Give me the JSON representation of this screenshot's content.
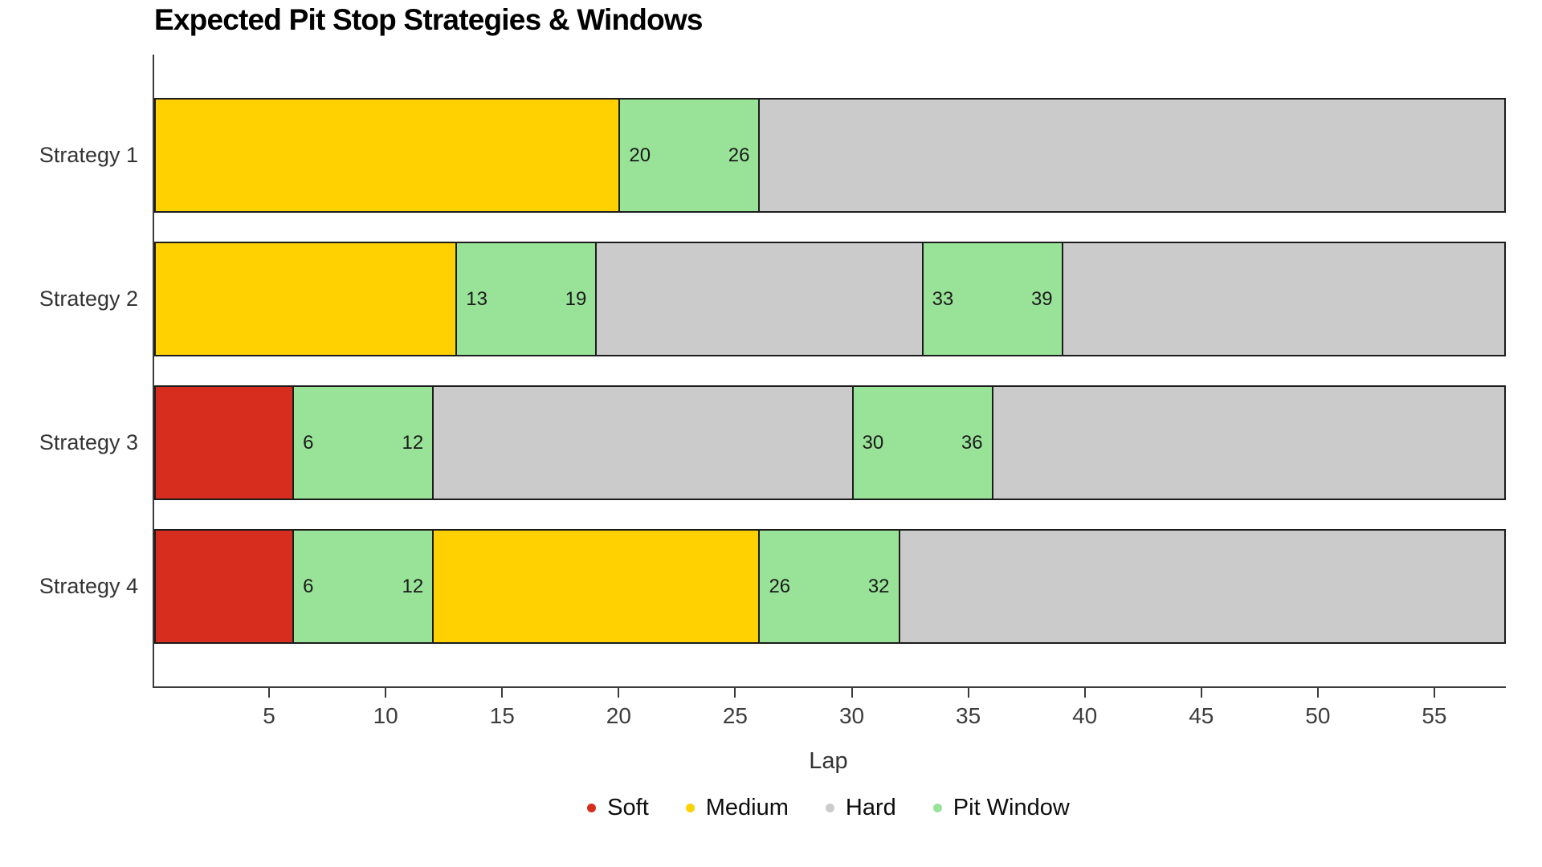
{
  "title": "Expected Pit Stop Strategies & Windows",
  "chart_data": {
    "type": "bar",
    "orientation": "horizontal-stacked",
    "title": "Expected Pit Stop Strategies & Windows",
    "xlabel": "Lap",
    "ylabel": "",
    "xlim": [
      0,
      58
    ],
    "xticks": [
      5,
      10,
      15,
      20,
      25,
      30,
      35,
      40,
      45,
      50,
      55
    ],
    "grid": false,
    "legend_position": "bottom",
    "legend": [
      {
        "name": "Soft",
        "color": "#d62d1f"
      },
      {
        "name": "Medium",
        "color": "#ffd100"
      },
      {
        "name": "Hard",
        "color": "#cbcbcb"
      },
      {
        "name": "Pit Window",
        "color": "#99e399"
      }
    ],
    "categories": [
      "Strategy 1",
      "Strategy 2",
      "Strategy 3",
      "Strategy 4"
    ],
    "rows": [
      {
        "label": "Strategy 1",
        "segments": [
          {
            "compound": "Medium",
            "start": 0,
            "end": 20
          },
          {
            "compound": "Pit Window",
            "start": 20,
            "end": 26,
            "start_label": "20",
            "end_label": "26"
          },
          {
            "compound": "Hard",
            "start": 26,
            "end": 58
          }
        ]
      },
      {
        "label": "Strategy 2",
        "segments": [
          {
            "compound": "Medium",
            "start": 0,
            "end": 13
          },
          {
            "compound": "Pit Window",
            "start": 13,
            "end": 19,
            "start_label": "13",
            "end_label": "19"
          },
          {
            "compound": "Hard",
            "start": 19,
            "end": 33
          },
          {
            "compound": "Pit Window",
            "start": 33,
            "end": 39,
            "start_label": "33",
            "end_label": "39"
          },
          {
            "compound": "Hard",
            "start": 39,
            "end": 58
          }
        ]
      },
      {
        "label": "Strategy 3",
        "segments": [
          {
            "compound": "Soft",
            "start": 0,
            "end": 6
          },
          {
            "compound": "Pit Window",
            "start": 6,
            "end": 12,
            "start_label": "6",
            "end_label": "12"
          },
          {
            "compound": "Hard",
            "start": 12,
            "end": 30
          },
          {
            "compound": "Pit Window",
            "start": 30,
            "end": 36,
            "start_label": "30",
            "end_label": "36"
          },
          {
            "compound": "Hard",
            "start": 36,
            "end": 58
          }
        ]
      },
      {
        "label": "Strategy 4",
        "segments": [
          {
            "compound": "Soft",
            "start": 0,
            "end": 6
          },
          {
            "compound": "Pit Window",
            "start": 6,
            "end": 12,
            "start_label": "6",
            "end_label": "12"
          },
          {
            "compound": "Medium",
            "start": 12,
            "end": 26
          },
          {
            "compound": "Pit Window",
            "start": 26,
            "end": 32,
            "start_label": "26",
            "end_label": "32"
          },
          {
            "compound": "Hard",
            "start": 32,
            "end": 58
          }
        ]
      }
    ]
  },
  "colors": {
    "background": "#ffffff",
    "axis": "#3a3a3a",
    "segment_border": "#1c1c1c",
    "tick_text": "#3d3d3d",
    "label_text": "#333333"
  }
}
